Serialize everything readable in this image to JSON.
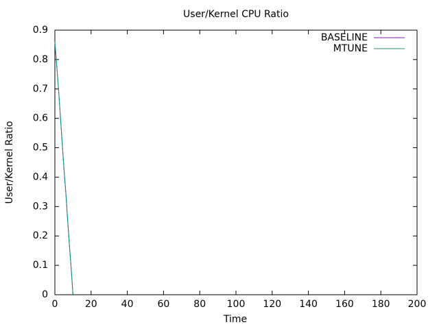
{
  "chart_data": {
    "type": "line",
    "title": "User/Kernel CPU Ratio",
    "x_label": "Time",
    "y_label": "User/Kernel Ratio",
    "x": [
      0,
      1,
      2,
      3,
      4,
      5,
      6,
      7,
      8,
      9,
      10
    ],
    "series": [
      {
        "name": "BASELINE",
        "color": "#9400d3",
        "values": [
          0.86,
          0.78,
          0.7,
          0.61,
          0.52,
          0.43,
          0.35,
          0.26,
          0.17,
          0.09,
          0
        ]
      },
      {
        "name": "MTUNE",
        "color": "#009e73",
        "values": [
          0.86,
          0.78,
          0.7,
          0.61,
          0.52,
          0.43,
          0.35,
          0.26,
          0.17,
          0.09,
          0
        ]
      }
    ],
    "xlim": [
      0,
      200
    ],
    "xticks": [
      0,
      20,
      40,
      60,
      80,
      100,
      120,
      140,
      160,
      180,
      200
    ],
    "ylim": [
      0,
      0.9
    ],
    "yticks": [
      0,
      0.1,
      0.2,
      0.3,
      0.4,
      0.5,
      0.6,
      0.7,
      0.8,
      0.9
    ],
    "legend": "top right"
  }
}
